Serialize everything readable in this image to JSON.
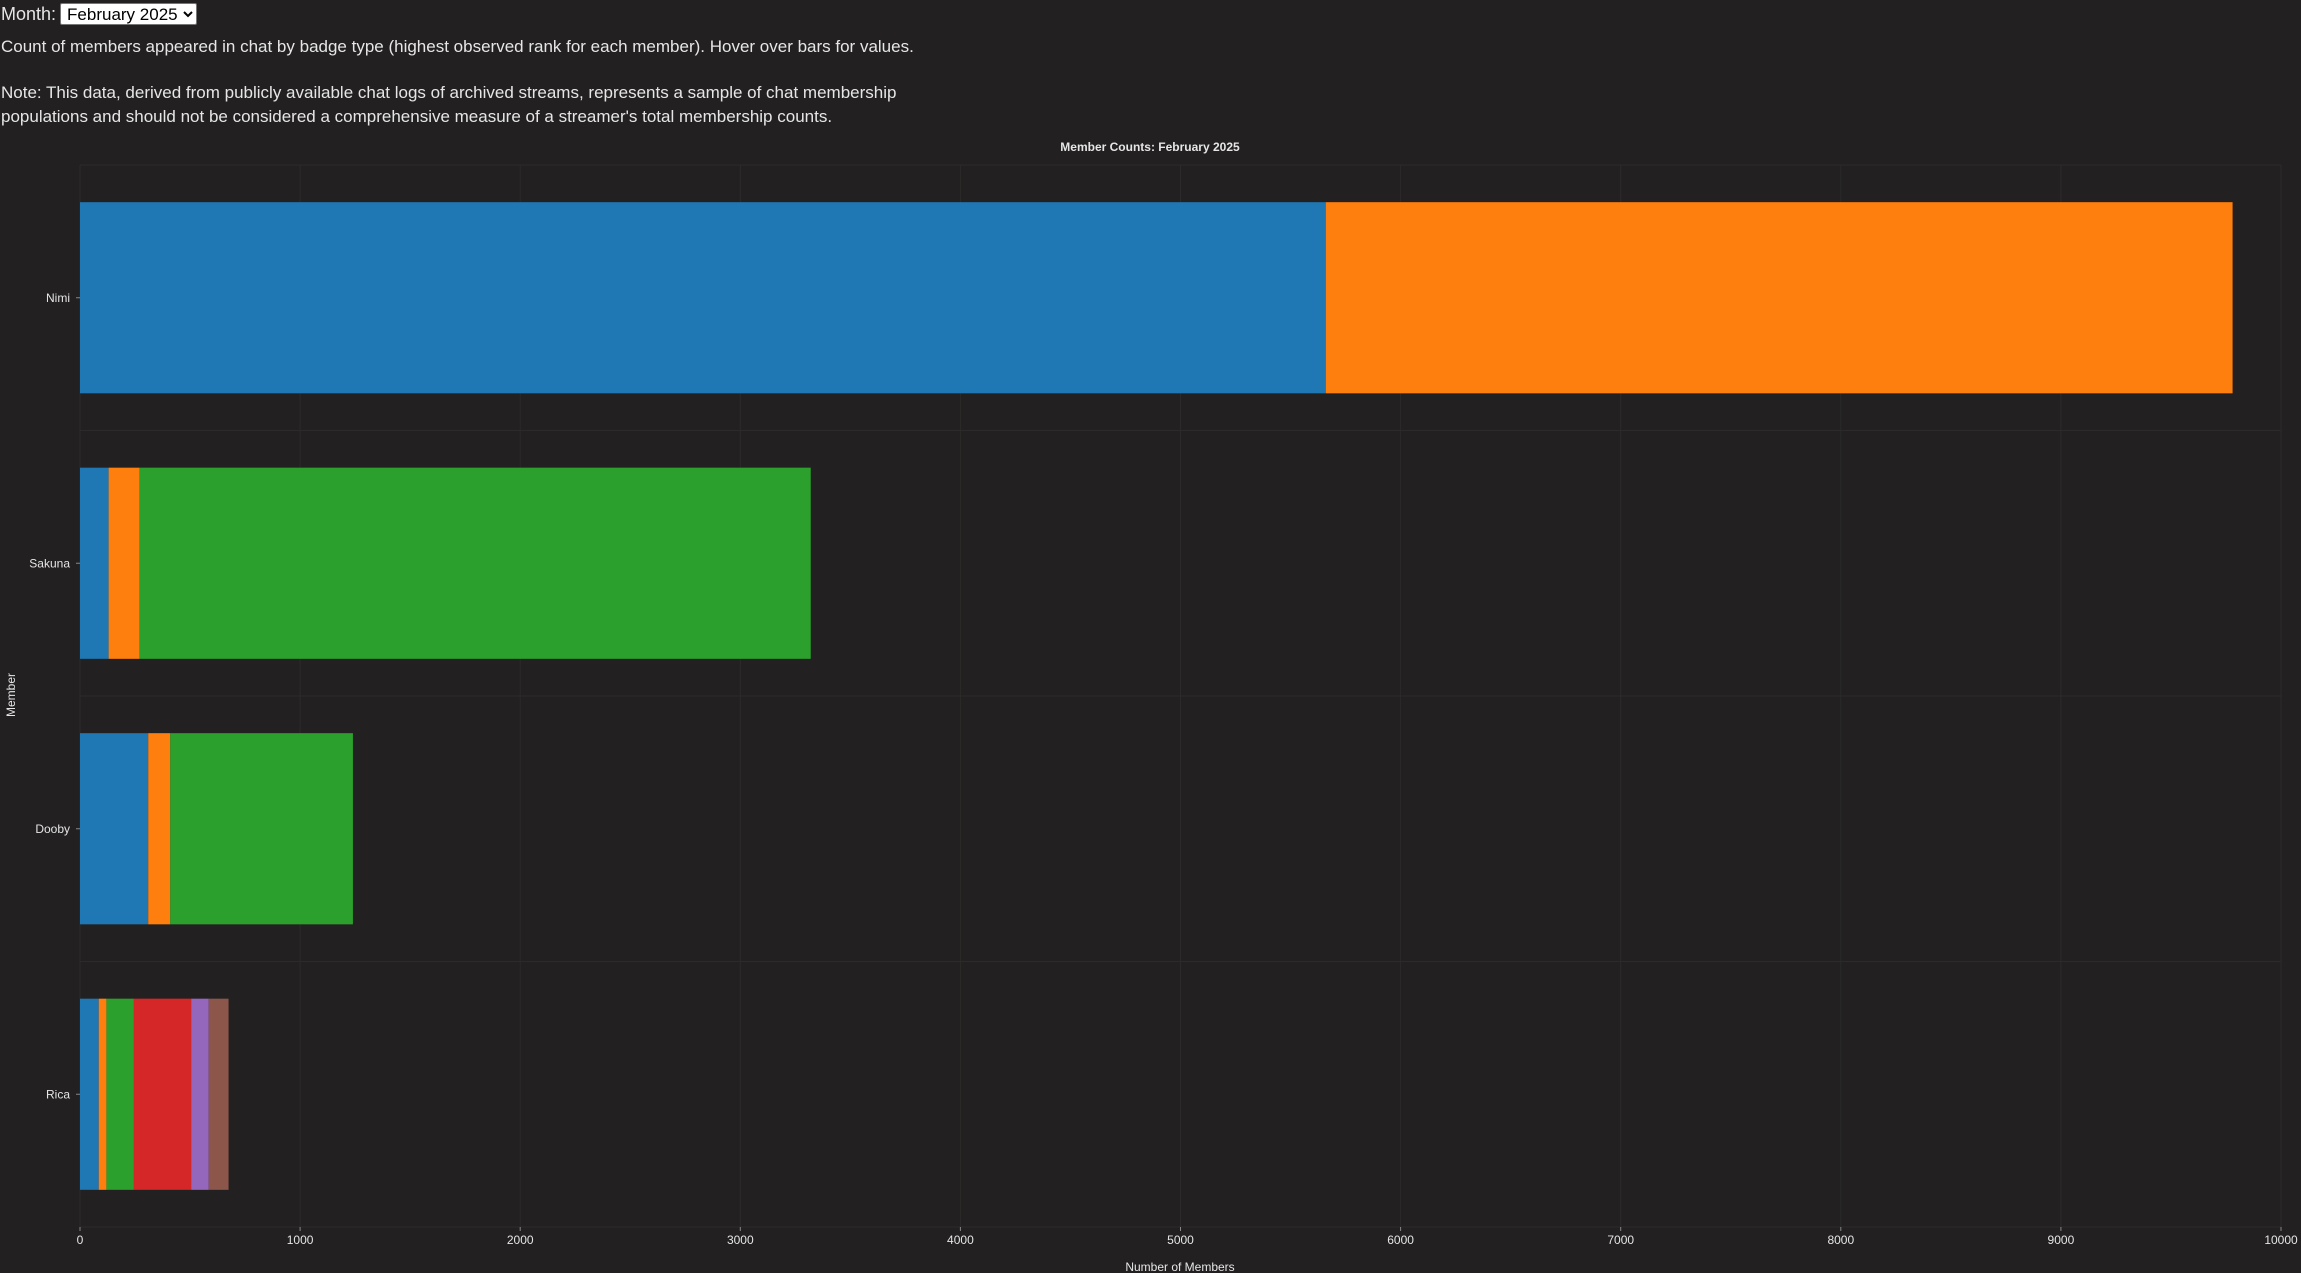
{
  "controls": {
    "month_label": "Month:",
    "month_selected": "February 2025"
  },
  "description": "Count of members appeared in chat by badge type (highest observed rank for each member). Hover over bars for values.",
  "note": "Note: This data, derived from publicly available chat logs of archived streams, represents a sample of chat membership populations and should not be considered a comprehensive measure of a streamer's total membership counts.",
  "chart_data": {
    "type": "bar",
    "orientation": "horizontal",
    "stacked": true,
    "title": "Member Counts: February 2025",
    "xlabel": "Number of Members",
    "ylabel": "Member",
    "xlim": [
      0,
      10000
    ],
    "xticks": [
      0,
      1000,
      2000,
      3000,
      4000,
      5000,
      6000,
      7000,
      8000,
      9000,
      10000
    ],
    "grid": true,
    "categories": [
      "Nimi",
      "Sakuna",
      "Dooby",
      "Rica"
    ],
    "series": [
      {
        "color": "#1f77b4",
        "values": [
          5660,
          130,
          310,
          85
        ]
      },
      {
        "color": "#ff7f0e",
        "values": [
          4120,
          140,
          100,
          35
        ]
      },
      {
        "color": "#2ca02c",
        "values": [
          0,
          3050,
          830,
          125
        ]
      },
      {
        "color": "#d62728",
        "values": [
          0,
          0,
          0,
          260
        ]
      },
      {
        "color": "#9467bd",
        "values": [
          0,
          0,
          0,
          80
        ]
      },
      {
        "color": "#8c564b",
        "values": [
          0,
          0,
          0,
          90
        ]
      }
    ]
  }
}
